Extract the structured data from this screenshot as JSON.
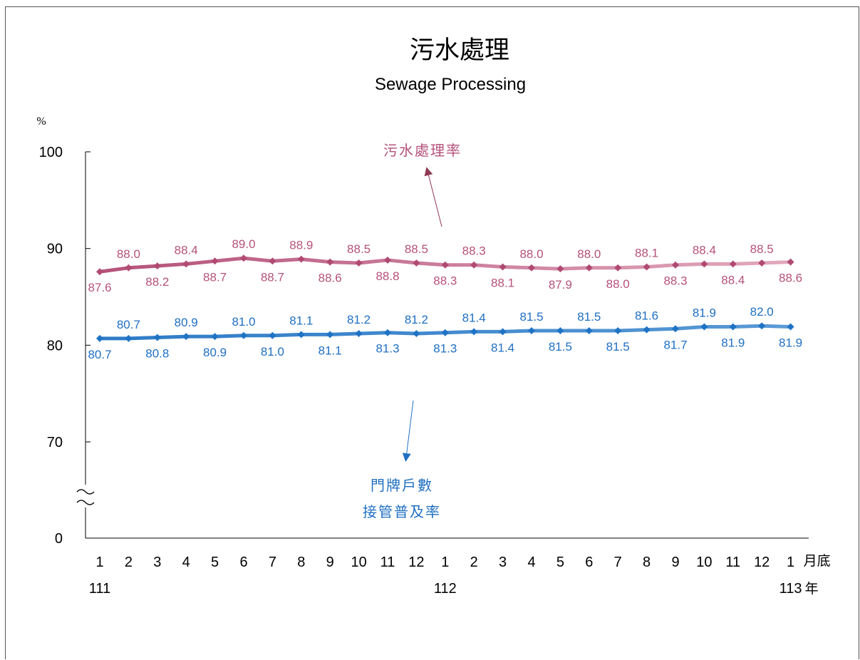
{
  "chart_data": {
    "type": "line",
    "title": "污水處理",
    "subtitle": "Sewage Processing",
    "ylabel": "%",
    "y_ticks": [
      "100",
      "90",
      "80",
      "70",
      "0"
    ],
    "ylim": [
      60,
      100
    ],
    "axis_break": true,
    "grid": false,
    "x_unit_label": "月底",
    "year_suffix": "年",
    "categories": [
      "1",
      "2",
      "3",
      "4",
      "5",
      "6",
      "7",
      "8",
      "9",
      "10",
      "11",
      "12",
      "1",
      "2",
      "3",
      "4",
      "5",
      "6",
      "7",
      "8",
      "9",
      "10",
      "11",
      "12",
      "1"
    ],
    "year_labels": [
      {
        "index": 0,
        "label": "111"
      },
      {
        "index": 12,
        "label": "112"
      },
      {
        "index": 24,
        "label": "113"
      }
    ],
    "series": [
      {
        "name": "污水處理率",
        "color": "#b5527a",
        "values": [
          87.6,
          88.0,
          88.2,
          88.4,
          88.7,
          89.0,
          88.7,
          88.9,
          88.6,
          88.5,
          88.8,
          88.5,
          88.3,
          88.3,
          88.1,
          88.0,
          87.9,
          88.0,
          88.0,
          88.1,
          88.3,
          88.4,
          88.4,
          88.5,
          88.6
        ]
      },
      {
        "name": "門牌戶數接管普及率",
        "name_lines": [
          "門牌戶數",
          "接管普及率"
        ],
        "color": "#1f6fc2",
        "values": [
          80.7,
          80.7,
          80.8,
          80.9,
          80.9,
          81.0,
          81.0,
          81.1,
          81.1,
          81.2,
          81.3,
          81.2,
          81.3,
          81.4,
          81.4,
          81.5,
          81.5,
          81.5,
          81.5,
          81.6,
          81.7,
          81.9,
          81.9,
          82.0,
          81.9
        ]
      }
    ]
  }
}
